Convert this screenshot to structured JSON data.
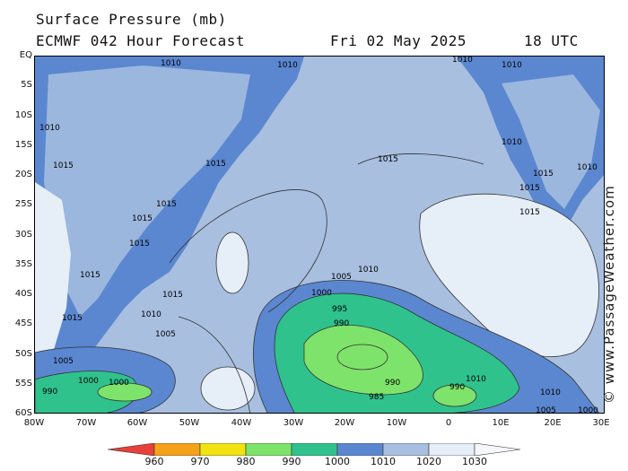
{
  "header": {
    "title": "Surface Pressure (mb)",
    "model": "ECMWF 042 Hour Forecast",
    "date": "Fri 02 May 2025",
    "time": "18 UTC"
  },
  "credit": "© www.PassageWeather.com",
  "axes": {
    "lat_labels": [
      "EQ",
      "5S",
      "10S",
      "15S",
      "20S",
      "25S",
      "30S",
      "35S",
      "40S",
      "45S",
      "50S",
      "55S",
      "60S"
    ],
    "lon_labels": [
      "80W",
      "70W",
      "60W",
      "50W",
      "40W",
      "30W",
      "20W",
      "10W",
      "0",
      "10E",
      "20E",
      "30E"
    ]
  },
  "colorbar": {
    "ticks": [
      "960",
      "970",
      "980",
      "990",
      "1000",
      "1010",
      "1020",
      "1030"
    ],
    "colors": [
      "#e8413c",
      "#f5a21a",
      "#f2e20f",
      "#7ee36a",
      "#2fc28d",
      "#5b87d0",
      "#a8bfe0",
      "#e6eef8"
    ]
  },
  "map_labels": [
    "1010",
    "1010",
    "1010",
    "1010",
    "1015",
    "1015",
    "1015",
    "1015",
    "1015",
    "1015",
    "1015",
    "1015",
    "1015",
    "1010",
    "1010",
    "1005",
    "1005",
    "1005",
    "1000",
    "1000",
    "995",
    "990",
    "985",
    "990",
    "990",
    "1000",
    "1010",
    "1010",
    "1005",
    "1000",
    "990",
    "1010",
    "1015",
    "1015",
    "1015",
    "1010",
    "1010"
  ],
  "palette": {
    "land": "#5b87d0",
    "sea_1015": "#a8bfe0",
    "high_1020": "#e6eef8",
    "low_1005": "#5b87d0",
    "low_1000": "#5a9ad8",
    "low_995": "#2fc28d",
    "low_985": "#7ee36a"
  }
}
